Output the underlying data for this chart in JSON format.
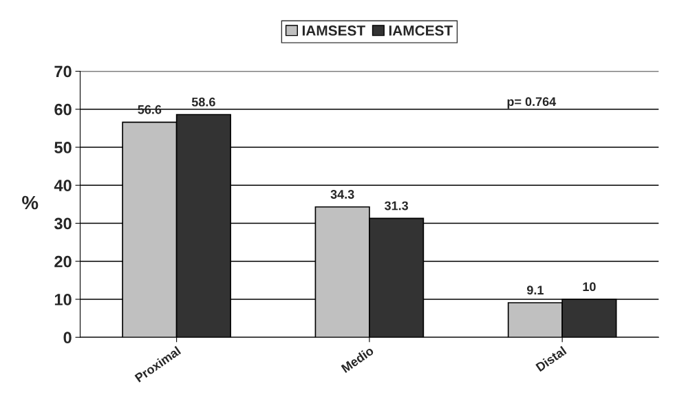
{
  "chart_data": {
    "type": "bar",
    "ylabel": "%",
    "categories": [
      "Proximal",
      "Medio",
      "Distal"
    ],
    "series": [
      {
        "name": "IAMSEST",
        "color": "#c0c0c0",
        "values": [
          56.6,
          34.3,
          9.1
        ]
      },
      {
        "name": "IAMCEST",
        "color": "#333333",
        "values": [
          58.6,
          31.3,
          10
        ]
      }
    ],
    "ylim": [
      0,
      70
    ],
    "yticks": [
      0,
      10,
      20,
      30,
      40,
      50,
      60,
      70
    ],
    "grid": "y",
    "legend": "top",
    "data_labels": true,
    "annotations": [
      "p= 0.764"
    ]
  }
}
